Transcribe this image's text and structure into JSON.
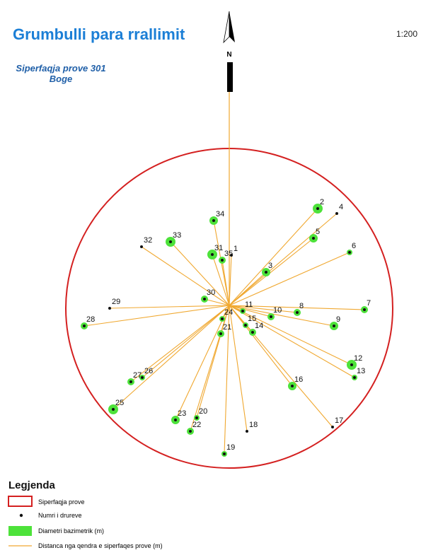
{
  "header": {
    "title": "Grumbulli para rrallimit",
    "scale": "1:200",
    "subtitle": "Siperfaqja prove 301",
    "place": "Boge",
    "north": "N"
  },
  "trees": [
    "1",
    "2",
    "3",
    "4",
    "5",
    "6",
    "7",
    "8",
    "9",
    "10",
    "11",
    "12",
    "13",
    "14",
    "15",
    "16",
    "17",
    "18",
    "19",
    "20",
    "21",
    "22",
    "23",
    "24",
    "25",
    "26",
    "27",
    "28",
    "29",
    "30",
    "31",
    "32",
    "33",
    "34",
    "35"
  ],
  "legend": {
    "title": "Legjenda",
    "items": [
      "Siperfaqja prove",
      "Numri i drureve",
      "Diametri bazimetrik (m)",
      "Distanca nga qendra e siperfaqes prove (m)"
    ]
  }
}
